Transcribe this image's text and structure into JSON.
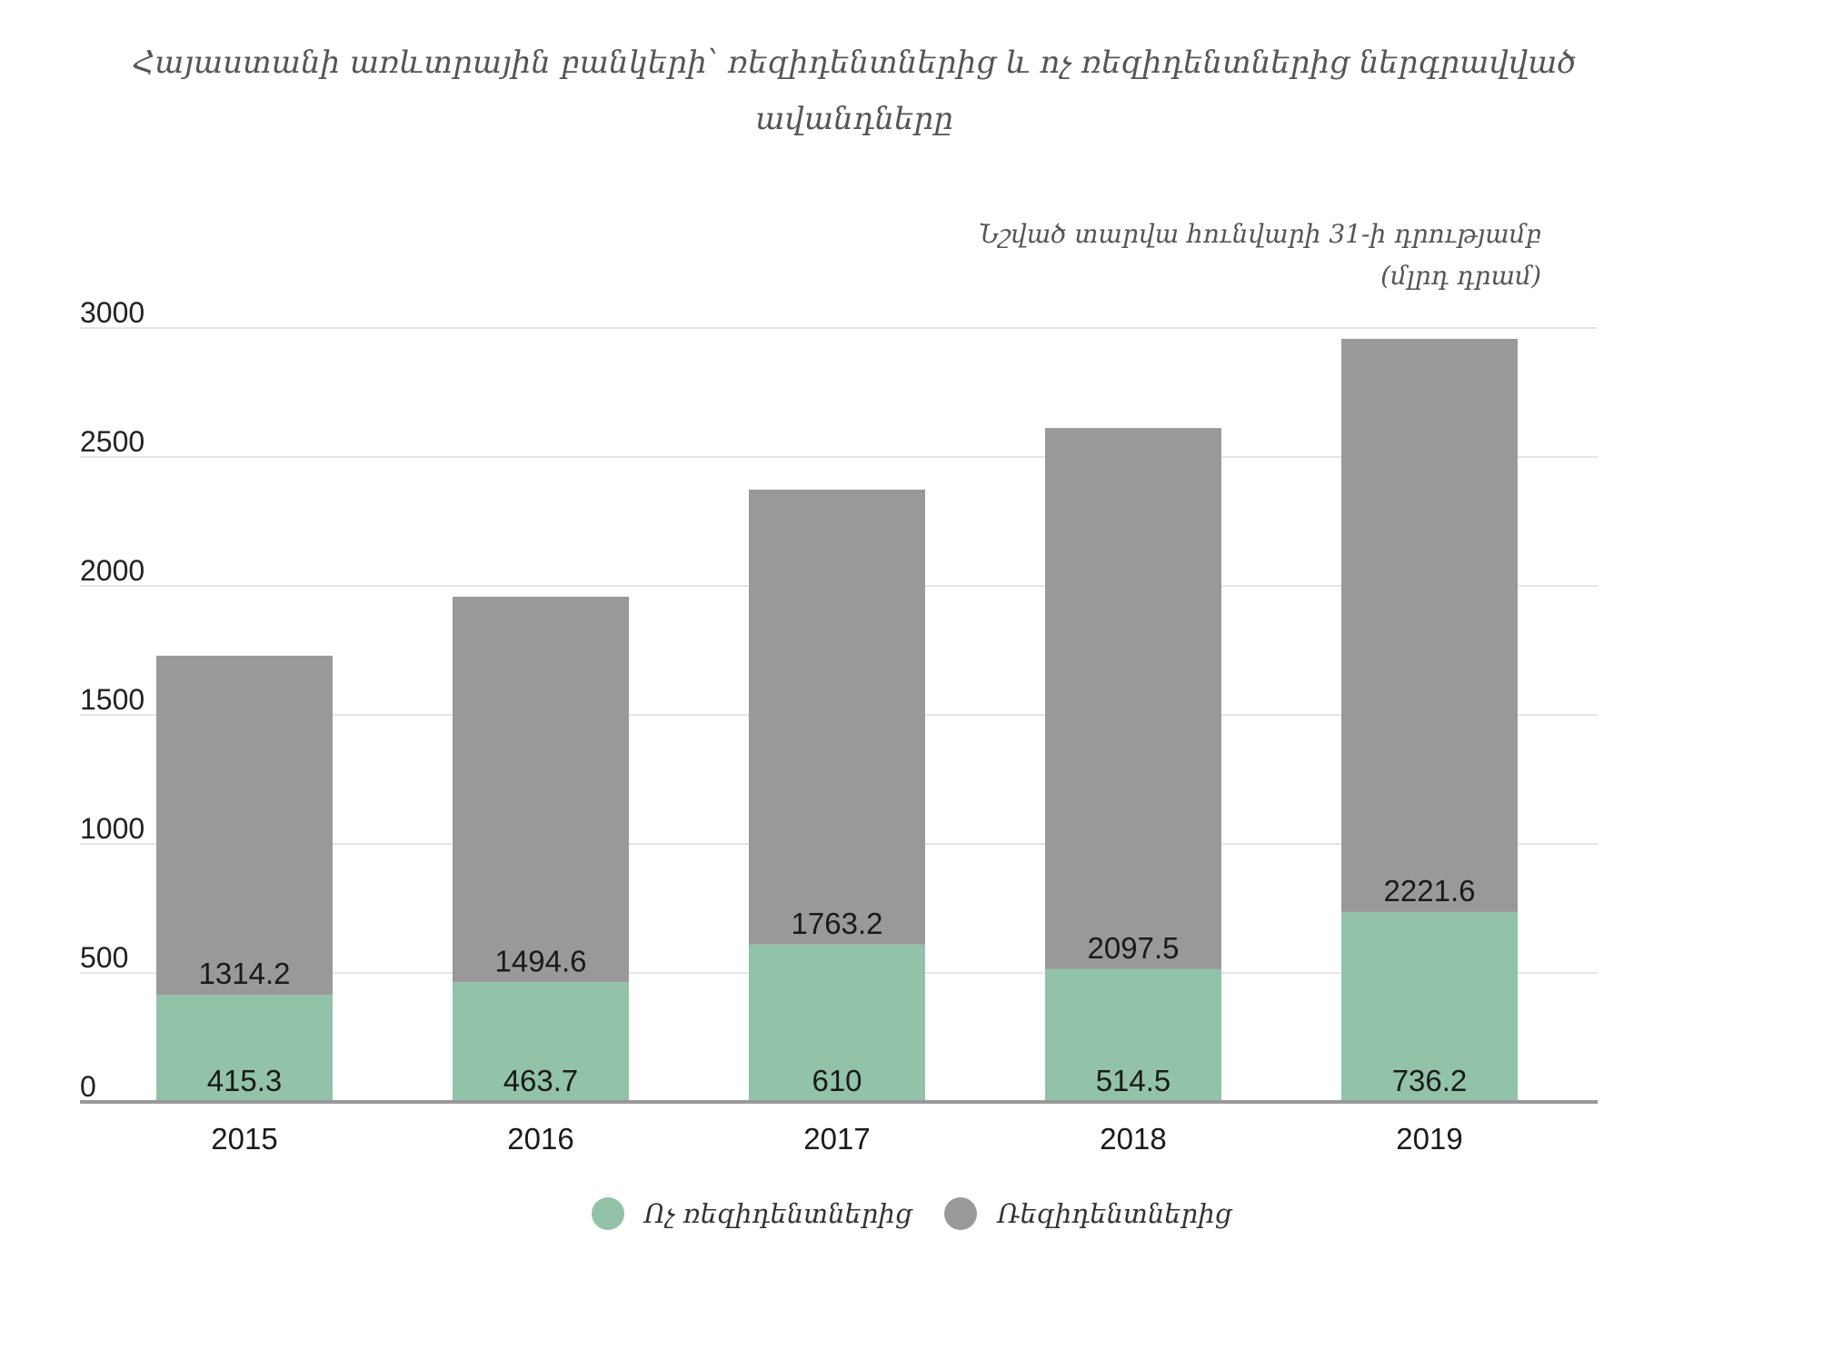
{
  "chart_data": {
    "type": "bar",
    "stacked": true,
    "title": "Հայաստանի առևտրային բանկերի՝  ռեզիդենտներից և ոչ ռեզիդենտներից ներգրավված\nավանդները",
    "subtitle": "Նշված տարվա հունվարի 31-ի դրությամբ\n(մլրդ դրամ)",
    "xlabel": "",
    "ylabel": "",
    "categories": [
      "2015",
      "2016",
      "2017",
      "2018",
      "2019"
    ],
    "series": [
      {
        "name": "Ոչ ռեզիդենտներից",
        "color": "#92c2a7",
        "values": [
          415.3,
          463.7,
          610,
          514.5,
          736.2
        ],
        "labels": [
          "415.3",
          "463.7",
          "610",
          "514.5",
          "736.2"
        ]
      },
      {
        "name": "Ռեզիդենտներից",
        "color": "#999999",
        "values": [
          1314.2,
          1494.6,
          1763.2,
          2097.5,
          2221.6
        ],
        "labels": [
          "1314.2",
          "1494.6",
          "1763.2",
          "2097.5",
          "2221.6"
        ]
      }
    ],
    "ylim": [
      0,
      3000
    ],
    "yticks": [
      0,
      500,
      1000,
      1500,
      2000,
      2500,
      3000
    ],
    "ytick_labels": [
      "0",
      "500",
      "1000",
      "1500",
      "2000",
      "2500",
      "3000"
    ],
    "grid": true,
    "legend_position": "bottom-center"
  }
}
